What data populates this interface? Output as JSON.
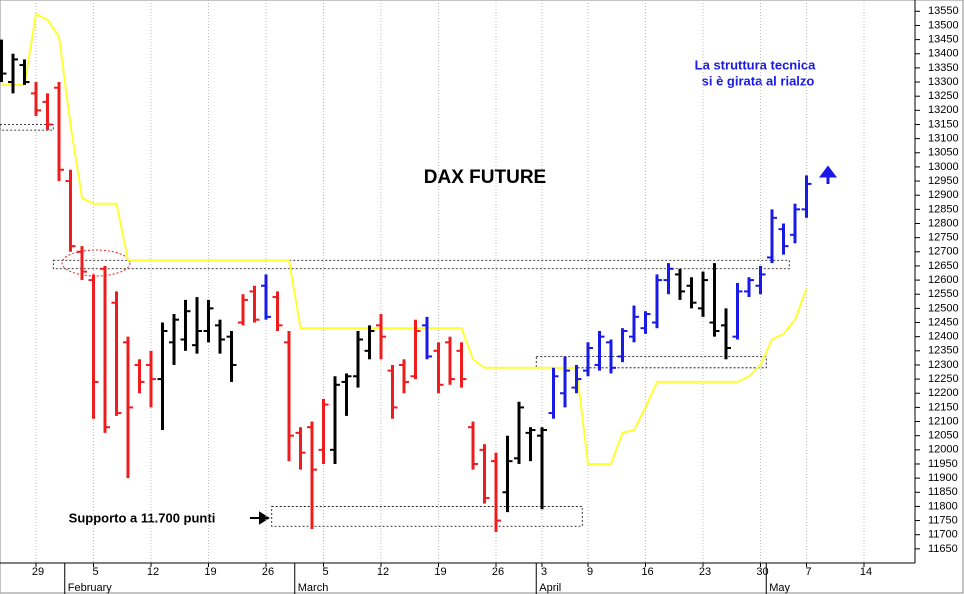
{
  "chart_data": {
    "type": "ohlc",
    "title": "DAX FUTURE",
    "annotation": [
      "La struttura tecnica",
      "si è girata al rialzo"
    ],
    "support_note": "Supporto a 11.700 punti",
    "categories": [
      null,
      null,
      null,
      "29",
      null,
      null,
      null,
      null,
      "5",
      null,
      null,
      null,
      null,
      "12",
      null,
      null,
      null,
      null,
      "19",
      null,
      null,
      null,
      null,
      "26",
      null,
      null,
      null,
      null,
      "5",
      null,
      null,
      null,
      null,
      "12",
      null,
      null,
      null,
      null,
      "19",
      null,
      null,
      null,
      null,
      "26",
      null,
      null,
      null,
      "3",
      null,
      null,
      null,
      "9",
      null,
      null,
      null,
      null,
      "16",
      null,
      null,
      null,
      null,
      "23",
      null,
      null,
      null,
      null,
      "30",
      null,
      null,
      null,
      "7",
      null,
      null,
      null,
      null,
      "14",
      null,
      null,
      null,
      null
    ],
    "months": [
      null,
      null,
      null,
      null,
      null,
      null,
      "February",
      null,
      null,
      null,
      null,
      null,
      null,
      null,
      null,
      null,
      null,
      null,
      null,
      null,
      null,
      null,
      null,
      null,
      null,
      null,
      "March",
      null,
      null,
      null,
      null,
      null,
      null,
      null,
      null,
      null,
      null,
      null,
      null,
      null,
      null,
      null,
      null,
      null,
      null,
      null,
      null,
      "April",
      null,
      null,
      null,
      null,
      null,
      null,
      null,
      null,
      null,
      null,
      null,
      null,
      null,
      null,
      null,
      null,
      null,
      null,
      null,
      "May",
      null,
      null,
      null,
      null,
      null,
      null,
      null,
      null,
      null,
      null,
      null,
      null
    ],
    "open": [
      13380,
      13300,
      13360,
      13260,
      13230,
      13280,
      12950,
      12700,
      12600,
      12640,
      12520,
      12380,
      12300,
      12300,
      12250,
      12380,
      12390,
      12370,
      12420,
      12440,
      12400,
      12450,
      12560,
      12580,
      12540,
      12380,
      12060,
      12080,
      12000,
      12000,
      12240,
      12260,
      12350,
      12440,
      12280,
      12300,
      12260,
      12440,
      12350,
      12380,
      12350,
      12080,
      12000,
      11960,
      11850,
      11970,
      12060,
      12050,
      12130,
      12200,
      12220,
      12280,
      12300,
      12380,
      12330,
      12400,
      12430,
      12450,
      12600,
      12620,
      12580,
      12500,
      12450,
      12440,
      12400,
      12560,
      12580,
      12680,
      12780,
      12760,
      12850,
      null,
      null,
      null,
      null,
      null,
      null,
      null,
      null,
      null
    ],
    "high": [
      13450,
      13400,
      13380,
      13300,
      13260,
      13300,
      12990,
      12720,
      12620,
      12650,
      12560,
      12400,
      12320,
      12350,
      12450,
      12480,
      12530,
      12540,
      12530,
      12460,
      12420,
      12550,
      12580,
      12620,
      12560,
      12420,
      12080,
      12100,
      12180,
      12260,
      12270,
      12420,
      12440,
      12480,
      12300,
      12320,
      12460,
      12470,
      12380,
      12400,
      12380,
      12100,
      12020,
      11990,
      12050,
      12170,
      12080,
      12080,
      12290,
      12330,
      12300,
      12380,
      12420,
      12390,
      12430,
      12510,
      12490,
      12620,
      12660,
      12640,
      12610,
      12630,
      12660,
      12500,
      12590,
      12610,
      12650,
      12850,
      12800,
      12870,
      12970,
      null,
      null,
      null,
      null,
      null,
      null,
      null,
      null,
      null
    ],
    "low": [
      13300,
      13260,
      13290,
      13180,
      13130,
      12950,
      12700,
      12600,
      12110,
      12060,
      12120,
      11900,
      12200,
      12150,
      12070,
      12300,
      12350,
      12340,
      12380,
      12340,
      12240,
      12440,
      12450,
      12460,
      12420,
      11960,
      11930,
      11720,
      11950,
      11950,
      12120,
      12220,
      12320,
      12320,
      12110,
      12200,
      12250,
      12320,
      12200,
      12230,
      12220,
      11930,
      11810,
      11710,
      11780,
      11950,
      11960,
      11790,
      12110,
      12150,
      12200,
      12260,
      12280,
      12270,
      12310,
      12380,
      12410,
      12430,
      12550,
      12530,
      12500,
      12470,
      12400,
      12320,
      12390,
      12540,
      12550,
      12660,
      12690,
      12730,
      12820,
      null,
      null,
      null,
      null,
      null,
      null,
      null,
      null,
      null
    ],
    "close": [
      13330,
      13380,
      13300,
      13200,
      13150,
      12990,
      12720,
      12630,
      12240,
      12080,
      12130,
      12150,
      12240,
      12250,
      12420,
      12460,
      12490,
      12420,
      12500,
      12390,
      12300,
      12530,
      12460,
      12470,
      12440,
      12050,
      11990,
      11930,
      12160,
      12230,
      12260,
      12390,
      12420,
      12400,
      12150,
      12240,
      12420,
      12330,
      12230,
      12250,
      12250,
      11950,
      11830,
      11750,
      11960,
      12150,
      12070,
      12070,
      12260,
      12280,
      12250,
      12360,
      12400,
      12290,
      12420,
      12470,
      12480,
      12600,
      12640,
      12560,
      12520,
      12600,
      12420,
      12360,
      12560,
      12600,
      12620,
      12820,
      12720,
      12850,
      12940,
      null,
      null,
      null,
      null,
      null,
      null,
      null,
      null,
      null
    ],
    "bar_colors": [
      "#000000",
      "#000000",
      "#000000",
      "#ee1c1c",
      "#ee1c1c",
      "#ee1c1c",
      "#ee1c1c",
      "#ee1c1c",
      "#ee1c1c",
      "#ee1c1c",
      "#ee1c1c",
      "#ee1c1c",
      "#ee1c1c",
      "#ee1c1c",
      "#000000",
      "#000000",
      "#000000",
      "#000000",
      "#000000",
      "#000000",
      "#000000",
      "#ee1c1c",
      "#ee1c1c",
      "#1a1ae6",
      "#ee1c1c",
      "#ee1c1c",
      "#ee1c1c",
      "#ee1c1c",
      "#ee1c1c",
      "#000000",
      "#000000",
      "#000000",
      "#000000",
      "#ee1c1c",
      "#ee1c1c",
      "#ee1c1c",
      "#ee1c1c",
      "#1a1ae6",
      "#ee1c1c",
      "#ee1c1c",
      "#ee1c1c",
      "#ee1c1c",
      "#ee1c1c",
      "#ee1c1c",
      "#000000",
      "#000000",
      "#000000",
      "#000000",
      "#1a1ae6",
      "#1a1ae6",
      "#1a1ae6",
      "#1a1ae6",
      "#1a1ae6",
      "#1a1ae6",
      "#1a1ae6",
      "#1a1ae6",
      "#1a1ae6",
      "#1a1ae6",
      "#1a1ae6",
      "#000000",
      "#000000",
      "#000000",
      "#000000",
      "#000000",
      "#1a1ae6",
      "#1a1ae6",
      "#1a1ae6",
      "#1a1ae6",
      "#1a1ae6",
      "#1a1ae6",
      "#1a1ae6",
      null,
      null,
      null,
      null,
      null,
      null,
      null,
      null,
      null
    ],
    "stop_line": {
      "color": "#ffff33",
      "values": [
        13290,
        13290,
        13290,
        13540,
        13520,
        13460,
        13150,
        12890,
        12870,
        12870,
        12870,
        12670,
        12670,
        12670,
        12670,
        12670,
        12670,
        12670,
        12670,
        12670,
        12670,
        12670,
        12670,
        12670,
        12670,
        12670,
        12430,
        12430,
        12430,
        12430,
        12430,
        12430,
        12430,
        12430,
        12430,
        12430,
        12430,
        12430,
        12430,
        12430,
        12430,
        12320,
        12290,
        12290,
        12290,
        12290,
        12290,
        12290,
        12290,
        12290,
        12290,
        11950,
        11950,
        11950,
        12060,
        12070,
        12150,
        12240,
        12240,
        12240,
        12240,
        12240,
        12240,
        12240,
        12240,
        12260,
        12300,
        12390,
        12410,
        12460,
        12570,
        null,
        null,
        null,
        null,
        null,
        null,
        null,
        null,
        null
      ]
    },
    "zones": [
      {
        "low": 13130,
        "high": 13150,
        "from": 0,
        "to": 4
      },
      {
        "low": 12640,
        "high": 12670,
        "from": 5,
        "to": 68
      },
      {
        "low": 12290,
        "high": 12330,
        "from": 47,
        "to": 66
      },
      {
        "low": 11730,
        "high": 11800,
        "from": 24,
        "to": 50
      }
    ],
    "ylim": [
      11600,
      13590
    ],
    "yticks": [
      11650,
      11700,
      11750,
      11800,
      11850,
      11900,
      11950,
      12000,
      12050,
      12100,
      12150,
      12200,
      12250,
      12300,
      12350,
      12400,
      12450,
      12500,
      12550,
      12600,
      12650,
      12700,
      12750,
      12800,
      12850,
      12900,
      12950,
      13000,
      13050,
      13100,
      13150,
      13200,
      13250,
      13300,
      13350,
      13400,
      13450,
      13500,
      13550
    ],
    "grid": true
  }
}
